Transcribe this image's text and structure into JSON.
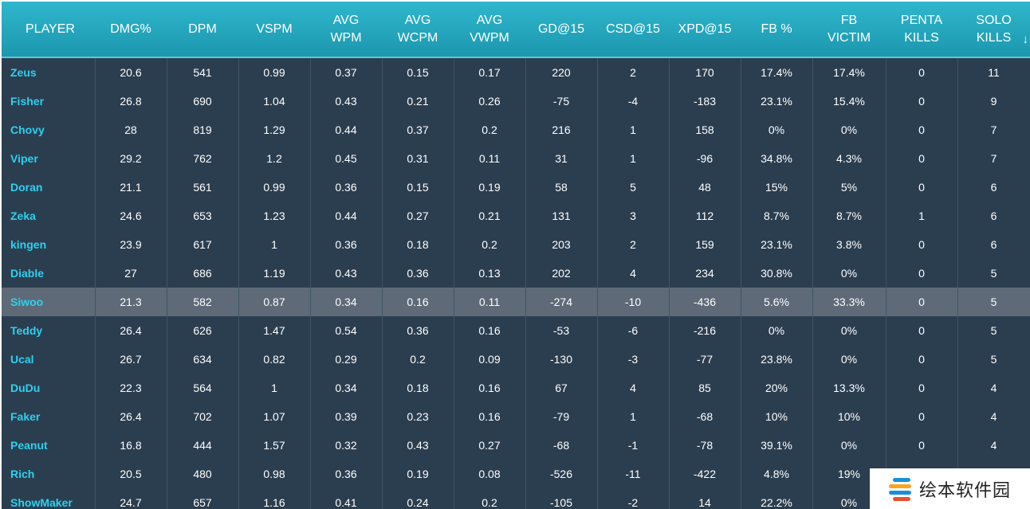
{
  "table": {
    "columns": [
      "PLAYER",
      "DMG%",
      "DPM",
      "VSPM",
      "AVG\nWPM",
      "AVG\nWCPM",
      "AVG\nVWPM",
      "GD@15",
      "CSD@15",
      "XPD@15",
      "FB %",
      "FB\nVICTIM",
      "PENTA\nKILLS",
      "SOLO\nKILLS"
    ],
    "sort_indicator": "↓",
    "highlighted_row": 8,
    "rows": [
      [
        "Zeus",
        "20.6",
        "541",
        "0.99",
        "0.37",
        "0.15",
        "0.17",
        "220",
        "2",
        "170",
        "17.4%",
        "17.4%",
        "0",
        "11"
      ],
      [
        "Fisher",
        "26.8",
        "690",
        "1.04",
        "0.43",
        "0.21",
        "0.26",
        "-75",
        "-4",
        "-183",
        "23.1%",
        "15.4%",
        "0",
        "9"
      ],
      [
        "Chovy",
        "28",
        "819",
        "1.29",
        "0.44",
        "0.37",
        "0.2",
        "216",
        "1",
        "158",
        "0%",
        "0%",
        "0",
        "7"
      ],
      [
        "Viper",
        "29.2",
        "762",
        "1.2",
        "0.45",
        "0.31",
        "0.11",
        "31",
        "1",
        "-96",
        "34.8%",
        "4.3%",
        "0",
        "7"
      ],
      [
        "Doran",
        "21.1",
        "561",
        "0.99",
        "0.36",
        "0.15",
        "0.19",
        "58",
        "5",
        "48",
        "15%",
        "5%",
        "0",
        "6"
      ],
      [
        "Zeka",
        "24.6",
        "653",
        "1.23",
        "0.44",
        "0.27",
        "0.21",
        "131",
        "3",
        "112",
        "8.7%",
        "8.7%",
        "1",
        "6"
      ],
      [
        "kingen",
        "23.9",
        "617",
        "1",
        "0.36",
        "0.18",
        "0.2",
        "203",
        "2",
        "159",
        "23.1%",
        "3.8%",
        "0",
        "6"
      ],
      [
        "Diable",
        "27",
        "686",
        "1.19",
        "0.43",
        "0.36",
        "0.13",
        "202",
        "4",
        "234",
        "30.8%",
        "0%",
        "0",
        "5"
      ],
      [
        "Siwoo",
        "21.3",
        "582",
        "0.87",
        "0.34",
        "0.16",
        "0.11",
        "-274",
        "-10",
        "-436",
        "5.6%",
        "33.3%",
        "0",
        "5"
      ],
      [
        "Teddy",
        "26.4",
        "626",
        "1.47",
        "0.54",
        "0.36",
        "0.16",
        "-53",
        "-6",
        "-216",
        "0%",
        "0%",
        "0",
        "5"
      ],
      [
        "Ucal",
        "26.7",
        "634",
        "0.82",
        "0.29",
        "0.2",
        "0.09",
        "-130",
        "-3",
        "-77",
        "23.8%",
        "0%",
        "0",
        "5"
      ],
      [
        "DuDu",
        "22.3",
        "564",
        "1",
        "0.34",
        "0.18",
        "0.16",
        "67",
        "4",
        "85",
        "20%",
        "13.3%",
        "0",
        "4"
      ],
      [
        "Faker",
        "26.4",
        "702",
        "1.07",
        "0.39",
        "0.23",
        "0.16",
        "-79",
        "1",
        "-68",
        "10%",
        "10%",
        "0",
        "4"
      ],
      [
        "Peanut",
        "16.8",
        "444",
        "1.57",
        "0.32",
        "0.43",
        "0.27",
        "-68",
        "-1",
        "-78",
        "39.1%",
        "0%",
        "0",
        "4"
      ],
      [
        "Rich",
        "20.5",
        "480",
        "0.98",
        "0.36",
        "0.19",
        "0.08",
        "-526",
        "-11",
        "-422",
        "4.8%",
        "19%",
        "",
        ""
      ],
      [
        "ShowMaker",
        "24.7",
        "657",
        "1.16",
        "0.41",
        "0.24",
        "0.2",
        "-105",
        "-2",
        "14",
        "22.2%",
        "0%",
        "",
        ""
      ]
    ]
  },
  "watermark": {
    "text": "绘本软件园",
    "colors": [
      "#1a8fd8",
      "#f5a623",
      "#1a8fd8",
      "#e8522b"
    ]
  }
}
